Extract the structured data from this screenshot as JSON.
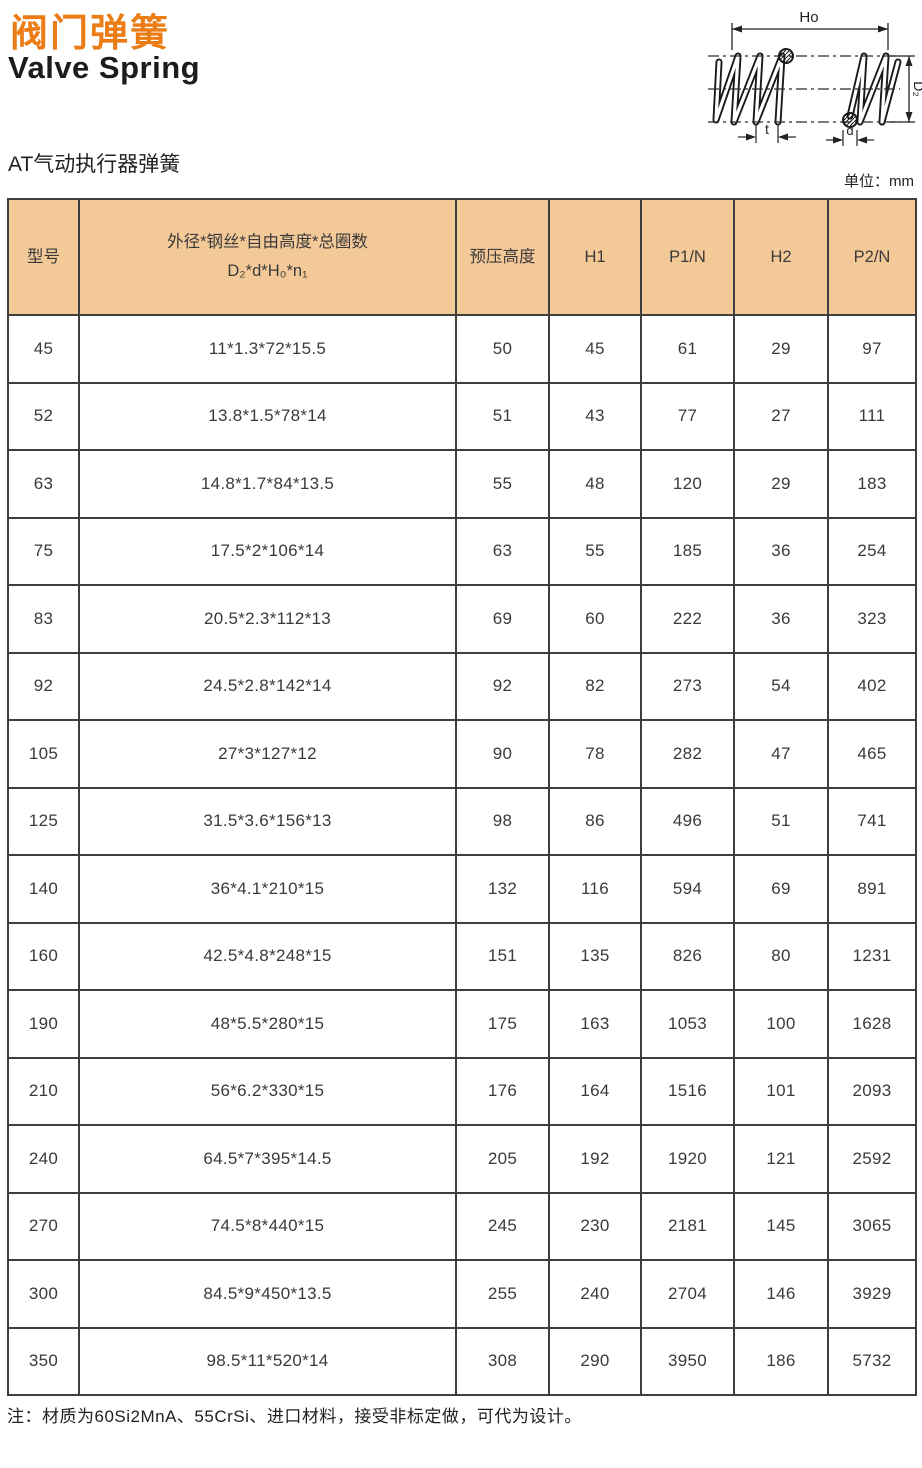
{
  "page": {
    "title_cn": "阀门弹簧",
    "title_en": "Valve Spring",
    "section_title": "AT气动执行器弹簧",
    "unit_label": "单位：mm",
    "note": "注：材质为60Si2MnA、55CrSi、进口材料，接受非标定做，可代为设计。"
  },
  "colors": {
    "accent_orange": "#EC7D16",
    "table_header_bg": "#F4C998",
    "table_border": "#3E3E3E",
    "drawing_line": "#222222"
  },
  "diagram": {
    "labels": {
      "free_length": "Ho",
      "outer_diameter": "D₂",
      "pitch": "t",
      "wire_diameter": "d"
    }
  },
  "table": {
    "headers": [
      {
        "lines": [
          "型号"
        ]
      },
      {
        "lines": [
          "外径*钢丝*自由高度*总圈数",
          "D₂*d*H₀*n₁"
        ]
      },
      {
        "lines": [
          "预压高度"
        ]
      },
      {
        "lines": [
          "H1"
        ]
      },
      {
        "lines": [
          "P1/N"
        ]
      },
      {
        "lines": [
          "H2"
        ]
      },
      {
        "lines": [
          "P2/N"
        ]
      }
    ],
    "rows": [
      [
        "45",
        "11*1.3*72*15.5",
        "50",
        "45",
        "61",
        "29",
        "97"
      ],
      [
        "52",
        "13.8*1.5*78*14",
        "51",
        "43",
        "77",
        "27",
        "111"
      ],
      [
        "63",
        "14.8*1.7*84*13.5",
        "55",
        "48",
        "120",
        "29",
        "183"
      ],
      [
        "75",
        "17.5*2*106*14",
        "63",
        "55",
        "185",
        "36",
        "254"
      ],
      [
        "83",
        "20.5*2.3*112*13",
        "69",
        "60",
        "222",
        "36",
        "323"
      ],
      [
        "92",
        "24.5*2.8*142*14",
        "92",
        "82",
        "273",
        "54",
        "402"
      ],
      [
        "105",
        "27*3*127*12",
        "90",
        "78",
        "282",
        "47",
        "465"
      ],
      [
        "125",
        "31.5*3.6*156*13",
        "98",
        "86",
        "496",
        "51",
        "741"
      ],
      [
        "140",
        "36*4.1*210*15",
        "132",
        "116",
        "594",
        "69",
        "891"
      ],
      [
        "160",
        "42.5*4.8*248*15",
        "151",
        "135",
        "826",
        "80",
        "1231"
      ],
      [
        "190",
        "48*5.5*280*15",
        "175",
        "163",
        "1053",
        "100",
        "1628"
      ],
      [
        "210",
        "56*6.2*330*15",
        "176",
        "164",
        "1516",
        "101",
        "2093"
      ],
      [
        "240",
        "64.5*7*395*14.5",
        "205",
        "192",
        "1920",
        "121",
        "2592"
      ],
      [
        "270",
        "74.5*8*440*15",
        "245",
        "230",
        "2181",
        "145",
        "3065"
      ],
      [
        "300",
        "84.5*9*450*13.5",
        "255",
        "240",
        "2704",
        "146",
        "3929"
      ],
      [
        "350",
        "98.5*11*520*14",
        "308",
        "290",
        "3950",
        "186",
        "5732"
      ]
    ]
  }
}
